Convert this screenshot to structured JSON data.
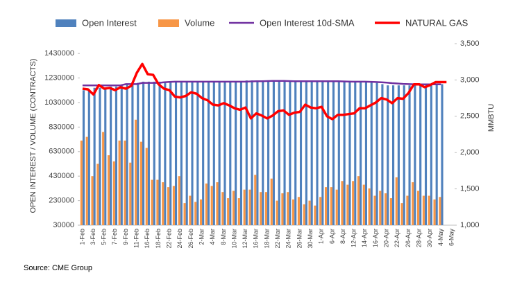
{
  "chart_data": {
    "type": "bar-line",
    "categories": [
      "1-Feb",
      null,
      "3-Feb",
      null,
      "5-Feb",
      null,
      "7-Feb",
      null,
      "9-Feb",
      null,
      "11-Feb",
      null,
      "16-Feb",
      null,
      "18-Feb",
      null,
      "22-Feb",
      null,
      "24-Feb",
      null,
      "26-Feb",
      null,
      "2-Mar",
      null,
      "4-Mar",
      null,
      "8-Mar",
      null,
      "10-Mar",
      null,
      "12-Mar",
      null,
      "16-Mar",
      null,
      "18-Mar",
      null,
      "22-Mar",
      null,
      "24-Mar",
      null,
      "26-Mar",
      null,
      "30-Mar",
      null,
      "1-Apr",
      null,
      "6-Apr",
      null,
      "8-Apr",
      null,
      "12-Apr",
      null,
      "14-Apr",
      null,
      "16-Apr",
      null,
      "20-Apr",
      null,
      "22-Apr",
      null,
      "26-Apr",
      null,
      "28-Apr",
      null,
      "30-Apr",
      null,
      "4-May",
      null,
      "6-May"
    ],
    "series": [
      {
        "name": "Open Interest",
        "type": "bar",
        "color": "#4f81bd",
        "values": [
          1130000,
          1140000,
          1150000,
          1150000,
          1150000,
          1160000,
          1160000,
          1170000,
          1180000,
          1190000,
          1190000,
          1200000,
          1200000,
          1200000,
          1200000,
          1200000,
          1200000,
          1200000,
          1200000,
          1200000,
          1200000,
          1200000,
          1200000,
          1200000,
          1200000,
          1200000,
          1200000,
          1200000,
          1200000,
          1200000,
          1210000,
          1210000,
          1210000,
          1200000,
          1210000,
          1210000,
          1210000,
          1210000,
          1210000,
          1200000,
          1200000,
          1200000,
          1200000,
          1200000,
          1200000,
          1210000,
          1210000,
          1200000,
          1200000,
          1200000,
          1200000,
          1200000,
          1200000,
          1200000,
          1190000,
          1180000,
          1170000,
          1170000,
          1170000,
          1170000,
          1170000,
          1170000,
          1170000,
          1170000,
          1180000,
          1180000,
          1180000,
          null,
          null
        ]
      },
      {
        "name": "Volume",
        "type": "bar",
        "color": "#f79646",
        "values": [
          720000,
          750000,
          430000,
          530000,
          790000,
          600000,
          550000,
          720000,
          720000,
          540000,
          890000,
          710000,
          660000,
          400000,
          400000,
          380000,
          340000,
          350000,
          430000,
          210000,
          270000,
          220000,
          240000,
          370000,
          350000,
          380000,
          300000,
          250000,
          310000,
          250000,
          320000,
          320000,
          440000,
          300000,
          300000,
          410000,
          230000,
          290000,
          300000,
          240000,
          260000,
          200000,
          230000,
          190000,
          260000,
          340000,
          340000,
          320000,
          390000,
          360000,
          390000,
          430000,
          360000,
          330000,
          270000,
          310000,
          290000,
          250000,
          420000,
          210000,
          270000,
          380000,
          310000,
          270000,
          270000,
          240000,
          260000,
          null,
          null
        ]
      },
      {
        "name": "Open Interest 10d-SMA",
        "type": "line",
        "color": "#7030a0",
        "values": [
          1170000,
          1170000,
          1170000,
          1170000,
          1170000,
          1170000,
          1170000,
          1170000,
          1180000,
          1180000,
          1180000,
          1190000,
          1190000,
          1190000,
          1190000,
          1195000,
          1198000,
          1200000,
          1200000,
          1200000,
          1200000,
          1200000,
          1200000,
          1200000,
          1200000,
          1200000,
          1200000,
          1200000,
          1200000,
          1200000,
          1200000,
          1202000,
          1203000,
          1204000,
          1205000,
          1206000,
          1206000,
          1206000,
          1205000,
          1204000,
          1204000,
          1203000,
          1203000,
          1203000,
          1203000,
          1203000,
          1203000,
          1203000,
          1202000,
          1201000,
          1200000,
          1200000,
          1200000,
          1199000,
          1197000,
          1195000,
          1192000,
          1188000,
          1185000,
          1182000,
          1180000,
          1179000,
          1178000,
          1178000,
          1178000,
          1178000,
          1178000,
          null,
          null
        ]
      },
      {
        "name": "NATURAL GAS",
        "type": "line",
        "axis": "y2",
        "color": "#ff0000",
        "values": [
          2880,
          2870,
          2800,
          2930,
          2880,
          2890,
          2860,
          2900,
          2880,
          2920,
          3100,
          3220,
          3080,
          3070,
          2940,
          2880,
          2860,
          2770,
          2760,
          2780,
          2830,
          2810,
          2750,
          2720,
          2660,
          2650,
          2680,
          2650,
          2610,
          2590,
          2620,
          2470,
          2540,
          2510,
          2470,
          2510,
          2570,
          2580,
          2520,
          2550,
          2560,
          2660,
          2620,
          2610,
          2630,
          2500,
          2460,
          2520,
          2520,
          2530,
          2540,
          2610,
          2610,
          2650,
          2690,
          2750,
          2730,
          2680,
          2750,
          2740,
          2820,
          2940,
          2940,
          2900,
          2930,
          2970,
          2970,
          2970,
          null
        ]
      }
    ],
    "ylim": [
      30000,
      1510000
    ],
    "yticks": [
      30000,
      230000,
      430000,
      630000,
      830000,
      1030000,
      1230000,
      1430000
    ],
    "y2lim": [
      1000,
      3500
    ],
    "y2ticks": [
      {
        "value": 1000,
        "label": "1,000"
      },
      {
        "value": 1500,
        "label": "1,500"
      },
      {
        "value": 2000,
        "label": "2,000"
      },
      {
        "value": 2500,
        "label": "2,500"
      },
      {
        "value": 3000,
        "label": "3,000"
      },
      {
        "value": 3500,
        "label": "3,500"
      }
    ],
    "ylabel": "OPEN INTEREST / VOLUME (CONTRACTS)",
    "y2label": "MMBTU",
    "source": "Source: CME Group",
    "legend": "top"
  }
}
